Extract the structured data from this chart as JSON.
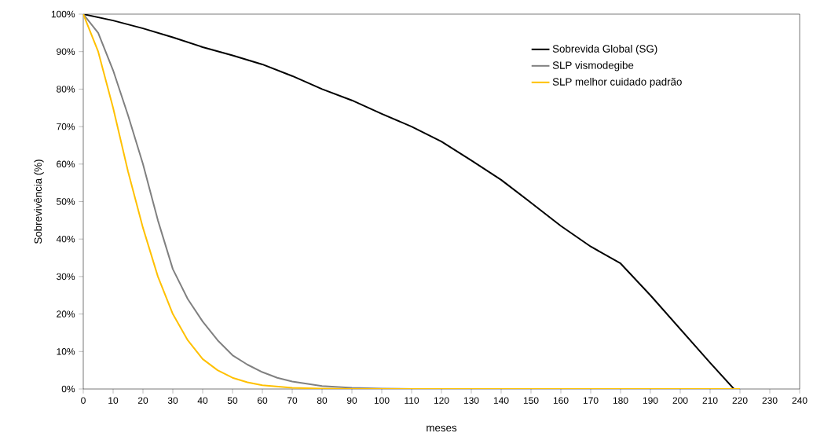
{
  "chart_data": {
    "type": "line",
    "xlabel": "meses",
    "ylabel": "Sobrevivência (%)",
    "xlim": [
      0,
      240
    ],
    "xticks": [
      0,
      10,
      20,
      30,
      40,
      50,
      60,
      70,
      80,
      90,
      100,
      110,
      120,
      130,
      140,
      150,
      160,
      170,
      180,
      190,
      200,
      210,
      220,
      230,
      240
    ],
    "ylim": [
      0,
      100
    ],
    "yticks": [
      {
        "value": 0,
        "label": "0%"
      },
      {
        "value": 10,
        "label": "10%"
      },
      {
        "value": 20,
        "label": "20%"
      },
      {
        "value": 30,
        "label": "30%"
      },
      {
        "value": 40,
        "label": "40%"
      },
      {
        "value": 50,
        "label": "50%"
      },
      {
        "value": 60,
        "label": "60%"
      },
      {
        "value": 70,
        "label": "70%"
      },
      {
        "value": 80,
        "label": "80%"
      },
      {
        "value": 90,
        "label": "90%"
      },
      {
        "value": 100,
        "label": "100%"
      }
    ],
    "legend": "top right",
    "grid": false,
    "marker": "none",
    "series": [
      {
        "name": "Sobrevida Global (SG)",
        "color": "#000000",
        "x": [
          0,
          10,
          20,
          30,
          40,
          50,
          60,
          70,
          80,
          90,
          100,
          110,
          120,
          130,
          140,
          150,
          160,
          170,
          180,
          190,
          200,
          210,
          218
        ],
        "values": [
          100,
          98.3,
          96.2,
          93.8,
          91.2,
          89,
          86.6,
          83.5,
          80,
          77,
          73.4,
          70,
          66,
          61,
          55.8,
          49.7,
          43.5,
          38,
          33.5,
          25,
          16,
          7,
          0
        ]
      },
      {
        "name": "SLP vismodegibe",
        "color": "#808080",
        "x": [
          0,
          5,
          10,
          15,
          20,
          25,
          30,
          35,
          40,
          45,
          50,
          55,
          60,
          65,
          70,
          80,
          90,
          100,
          110,
          220
        ],
        "values": [
          100,
          95,
          85,
          73,
          60,
          45,
          32,
          24,
          18,
          13,
          9,
          6.5,
          4.5,
          3,
          2,
          0.8,
          0.3,
          0.1,
          0,
          0
        ]
      },
      {
        "name": "SLP melhor cuidado padrão",
        "color": "#ffc000",
        "x": [
          0,
          5,
          10,
          15,
          20,
          25,
          30,
          35,
          40,
          45,
          50,
          55,
          60,
          70,
          80,
          90,
          220
        ],
        "values": [
          100,
          90,
          75,
          58,
          43,
          30,
          20,
          13,
          8,
          5,
          3,
          1.8,
          1,
          0.3,
          0.1,
          0,
          0
        ]
      }
    ]
  }
}
